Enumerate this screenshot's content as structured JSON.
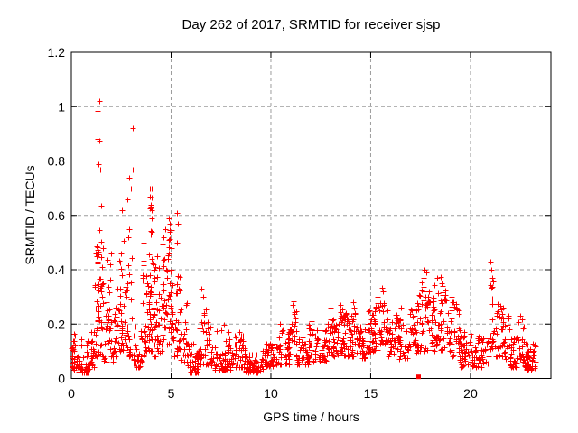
{
  "chart_data": {
    "type": "scatter",
    "title": "Day 262 of 2017, SRMTID for receiver sjsp",
    "xlabel": "GPS time / hours",
    "ylabel": "SRMTID / TECUs",
    "xlim": [
      0,
      24.03
    ],
    "ylim": [
      0,
      1.2
    ],
    "x_ticks": [
      0,
      5,
      10,
      15,
      20
    ],
    "x_tick_labels": [
      "0",
      "5",
      "10",
      "15",
      "20"
    ],
    "y_ticks": [
      0,
      0.2,
      0.4,
      0.6,
      0.8,
      1,
      1.2
    ],
    "y_tick_labels": [
      "0",
      "0.2",
      "0.4",
      "0.6",
      "0.8",
      "1",
      "1.2"
    ],
    "grid": true,
    "grid_style": "dashed",
    "legend_position": "none",
    "marker": "plus",
    "marker_size": 7,
    "colors": {
      "marker": "#ff0000",
      "grid": "#9c9c9c",
      "axis": "#000000",
      "text": "#000000",
      "background": "#ffffff"
    },
    "description": "Dense scatter of ~1600 red plus markers; quiet band near 0.02-0.15 TECUs with strong spike episodes near hours 1.4 (max 1.02), 2.4-3.1 (max 0.92), 3.9-5.3 (0.5-0.7), moderate activity 0.2-0.43 around hours 17-19 and 21, data ends near hour 23.3.",
    "points_model": {
      "seed": 20170262,
      "note": "bands = [x_start, x_end, n_points, y_min, y_max, low_bias_exponent]; outliers = explicit [x,y] points read from the plot",
      "bands": [
        [
          0.0,
          0.25,
          22,
          0.03,
          0.19,
          1.2
        ],
        [
          0.25,
          0.95,
          45,
          0.02,
          0.09,
          1.5
        ],
        [
          0.3,
          0.9,
          6,
          0.08,
          0.14,
          1.0
        ],
        [
          0.95,
          1.15,
          14,
          0.04,
          0.2,
          1.3
        ],
        [
          1.15,
          1.6,
          55,
          0.08,
          0.55,
          1.6
        ],
        [
          1.6,
          2.1,
          30,
          0.06,
          0.3,
          1.6
        ],
        [
          1.8,
          2.0,
          6,
          0.3,
          0.49,
          1.0
        ],
        [
          2.1,
          2.4,
          20,
          0.08,
          0.35,
          1.5
        ],
        [
          2.4,
          2.75,
          30,
          0.1,
          0.6,
          1.4
        ],
        [
          2.75,
          3.1,
          26,
          0.08,
          0.55,
          1.6
        ],
        [
          3.1,
          3.55,
          30,
          0.04,
          0.2,
          1.5
        ],
        [
          3.55,
          3.85,
          26,
          0.08,
          0.45,
          1.4
        ],
        [
          3.85,
          4.15,
          42,
          0.1,
          0.6,
          1.3
        ],
        [
          4.15,
          4.5,
          26,
          0.08,
          0.42,
          1.4
        ],
        [
          4.5,
          4.8,
          26,
          0.1,
          0.5,
          1.3
        ],
        [
          4.8,
          5.1,
          34,
          0.12,
          0.55,
          1.3
        ],
        [
          5.1,
          5.45,
          26,
          0.08,
          0.45,
          1.4
        ],
        [
          5.45,
          5.8,
          22,
          0.06,
          0.28,
          1.5
        ],
        [
          5.8,
          6.35,
          42,
          0.02,
          0.13,
          1.4
        ],
        [
          6.35,
          7.0,
          40,
          0.05,
          0.28,
          1.5
        ],
        [
          7.0,
          8.0,
          60,
          0.03,
          0.13,
          1.4
        ],
        [
          7.2,
          7.9,
          6,
          0.13,
          0.2,
          1.0
        ],
        [
          8.0,
          8.7,
          40,
          0.04,
          0.16,
          1.4
        ],
        [
          8.7,
          9.6,
          55,
          0.02,
          0.09,
          1.4
        ],
        [
          9.6,
          10.3,
          42,
          0.04,
          0.13,
          1.4
        ],
        [
          10.3,
          10.9,
          38,
          0.05,
          0.18,
          1.4
        ],
        [
          10.9,
          11.3,
          26,
          0.08,
          0.26,
          1.3
        ],
        [
          11.3,
          11.85,
          32,
          0.05,
          0.18,
          1.4
        ],
        [
          11.85,
          12.25,
          26,
          0.06,
          0.2,
          1.3
        ],
        [
          12.25,
          12.85,
          36,
          0.06,
          0.18,
          1.3
        ],
        [
          12.85,
          13.35,
          36,
          0.08,
          0.23,
          1.3
        ],
        [
          13.35,
          13.85,
          36,
          0.08,
          0.25,
          1.3
        ],
        [
          13.85,
          14.35,
          36,
          0.08,
          0.26,
          1.3
        ],
        [
          14.35,
          14.8,
          30,
          0.07,
          0.2,
          1.3
        ],
        [
          14.8,
          15.1,
          20,
          0.08,
          0.25,
          1.2
        ],
        [
          15.1,
          15.45,
          24,
          0.1,
          0.28,
          1.2
        ],
        [
          15.45,
          15.75,
          20,
          0.12,
          0.31,
          1.2
        ],
        [
          15.75,
          16.3,
          32,
          0.08,
          0.26,
          1.3
        ],
        [
          16.3,
          16.9,
          36,
          0.07,
          0.23,
          1.3
        ],
        [
          16.9,
          17.3,
          26,
          0.08,
          0.26,
          1.3
        ],
        [
          17.3,
          17.9,
          38,
          0.1,
          0.35,
          1.2
        ],
        [
          17.9,
          19.0,
          75,
          0.1,
          0.33,
          1.3
        ],
        [
          19.0,
          19.45,
          30,
          0.08,
          0.28,
          1.3
        ],
        [
          19.45,
          20.0,
          34,
          0.04,
          0.18,
          1.4
        ],
        [
          20.0,
          20.9,
          50,
          0.04,
          0.16,
          1.4
        ],
        [
          20.9,
          21.15,
          16,
          0.1,
          0.36,
          1.1
        ],
        [
          21.15,
          21.6,
          26,
          0.08,
          0.28,
          1.4
        ],
        [
          21.6,
          21.95,
          22,
          0.07,
          0.24,
          1.4
        ],
        [
          21.95,
          22.4,
          30,
          0.04,
          0.16,
          1.4
        ],
        [
          22.4,
          22.7,
          18,
          0.06,
          0.22,
          1.3
        ],
        [
          22.7,
          23.3,
          45,
          0.03,
          0.13,
          1.3
        ]
      ],
      "outliers": [
        [
          1.4,
          1.02
        ],
        [
          1.33,
          0.985
        ],
        [
          1.33,
          0.88
        ],
        [
          1.41,
          0.875
        ],
        [
          1.38,
          0.79
        ],
        [
          1.44,
          0.77
        ],
        [
          1.48,
          0.635
        ],
        [
          2.52,
          0.62
        ],
        [
          2.8,
          0.66
        ],
        [
          2.9,
          0.74
        ],
        [
          2.97,
          0.7
        ],
        [
          3.06,
          0.77
        ],
        [
          3.08,
          0.92
        ],
        [
          3.62,
          0.5
        ],
        [
          3.93,
          0.7
        ],
        [
          4.03,
          0.7
        ],
        [
          3.92,
          0.67
        ],
        [
          4.01,
          0.665
        ],
        [
          3.97,
          0.64
        ],
        [
          4.0,
          0.63
        ],
        [
          3.95,
          0.625
        ],
        [
          4.05,
          0.62
        ],
        [
          4.3,
          0.45
        ],
        [
          4.6,
          0.52
        ],
        [
          4.7,
          0.55
        ],
        [
          4.88,
          0.59
        ],
        [
          4.95,
          0.57
        ],
        [
          5.3,
          0.61
        ],
        [
          5.33,
          0.57
        ],
        [
          5.28,
          0.5
        ],
        [
          6.52,
          0.33
        ],
        [
          6.6,
          0.3
        ],
        [
          0.5,
          0.145
        ],
        [
          8.4,
          0.17
        ],
        [
          10.45,
          0.2
        ],
        [
          11.15,
          0.285
        ],
        [
          11.1,
          0.27
        ],
        [
          12.02,
          0.21
        ],
        [
          13.0,
          0.26
        ],
        [
          13.5,
          0.27
        ],
        [
          13.56,
          0.255
        ],
        [
          14.1,
          0.28
        ],
        [
          14.16,
          0.26
        ],
        [
          14.95,
          0.25
        ],
        [
          15.35,
          0.3
        ],
        [
          15.55,
          0.335
        ],
        [
          15.6,
          0.32
        ],
        [
          16.5,
          0.26
        ],
        [
          17.7,
          0.4
        ],
        [
          17.78,
          0.39
        ],
        [
          17.65,
          0.37
        ],
        [
          17.55,
          0.355
        ],
        [
          18.2,
          0.345
        ],
        [
          18.35,
          0.37
        ],
        [
          18.5,
          0.375
        ],
        [
          18.55,
          0.35
        ],
        [
          18.62,
          0.34
        ],
        [
          19.05,
          0.3
        ],
        [
          19.1,
          0.28
        ],
        [
          21.02,
          0.43
        ],
        [
          21.05,
          0.4
        ],
        [
          21.08,
          0.37
        ],
        [
          21.0,
          0.345
        ],
        [
          21.65,
          0.26
        ],
        [
          22.5,
          0.23
        ]
      ]
    },
    "extra_marker": {
      "shape": "filled-square",
      "x": 17.4,
      "y": 0.006,
      "size": 5,
      "color": "#ff0000"
    }
  }
}
